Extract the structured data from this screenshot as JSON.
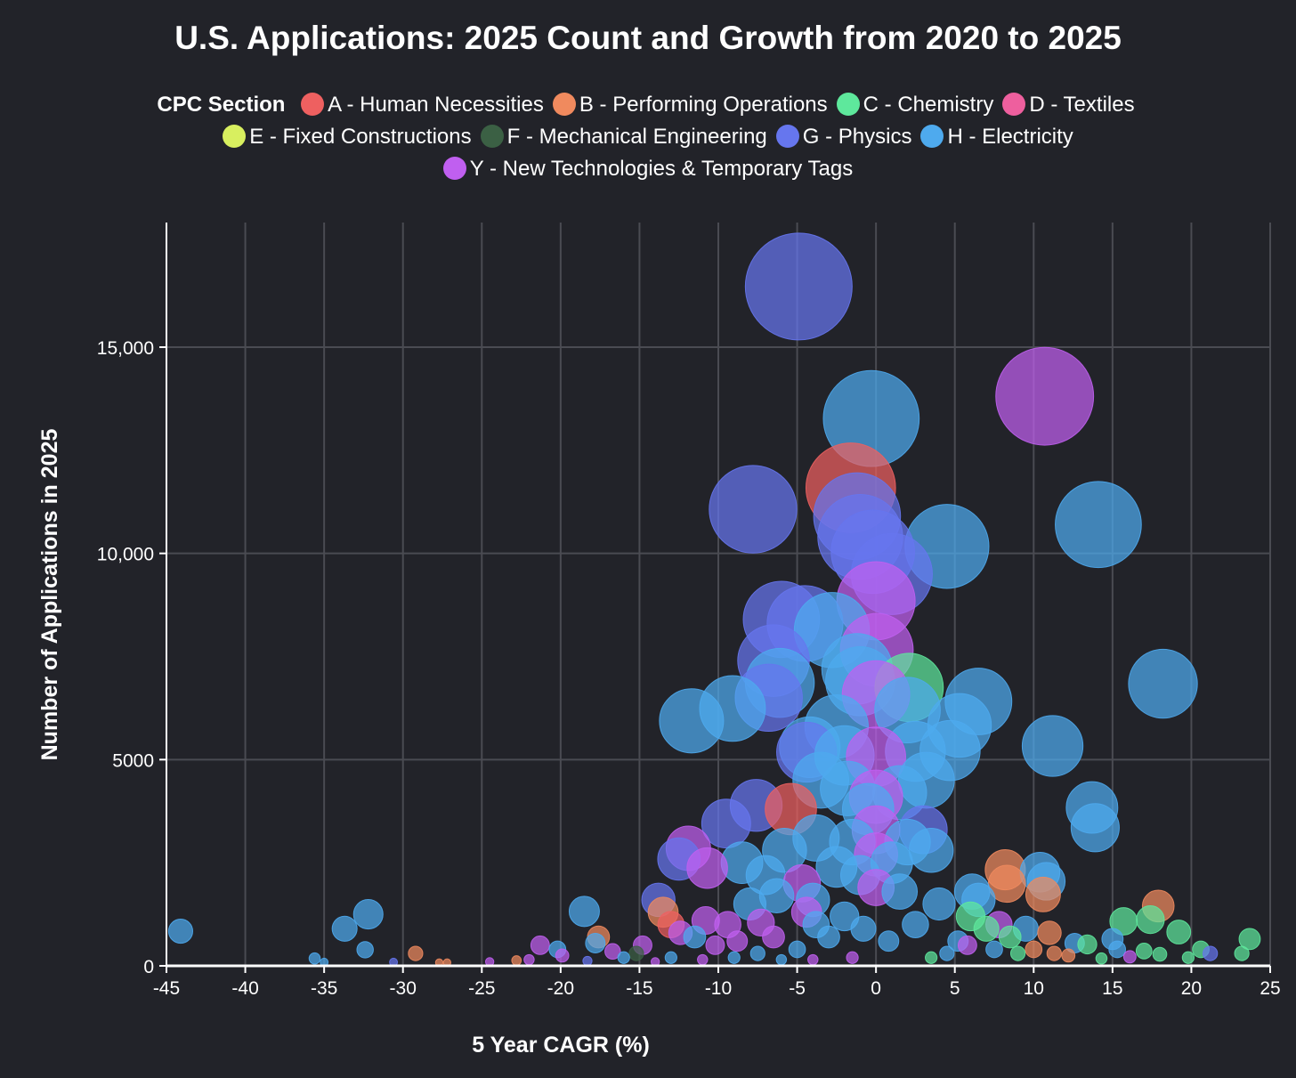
{
  "chart_data": {
    "type": "scatter",
    "title": "U.S. Applications: 2025 Count and Growth from 2020 to 2025",
    "xlabel": "5 Year CAGR (%)",
    "ylabel": "Number of Applications in 2025",
    "xlim": [
      -45,
      25
    ],
    "ylim": [
      0,
      18000
    ],
    "xticks": [
      -45,
      -40,
      -35,
      -30,
      -25,
      -20,
      -15,
      -10,
      -5,
      0,
      5,
      10,
      15,
      20,
      25
    ],
    "yticks": [
      {
        "v": 0,
        "label": "0"
      },
      {
        "v": 5000,
        "label": "5000"
      },
      {
        "v": 10000,
        "label": "10,000"
      },
      {
        "v": 15000,
        "label": "15,000"
      }
    ],
    "grid": true,
    "legend_title": "CPC Section",
    "legend_placement": "top",
    "size_encoding": "bubble area proportional to 2025 count",
    "sections": [
      {
        "key": "A",
        "label": "A - Human Necessities",
        "color": "#ee6060"
      },
      {
        "key": "B",
        "label": "B - Performing Operations",
        "color": "#f08a5e"
      },
      {
        "key": "C",
        "label": "C - Chemistry",
        "color": "#5ee89c"
      },
      {
        "key": "D",
        "label": "D - Textiles",
        "color": "#ee5f9e"
      },
      {
        "key": "E",
        "label": "E - Fixed Constructions",
        "color": "#d8ef5f"
      },
      {
        "key": "F",
        "label": "F - Mechanical Engineering",
        "color": "#3b6044"
      },
      {
        "key": "G",
        "label": "G - Physics",
        "color": "#6676ee"
      },
      {
        "key": "H",
        "label": "H - Electricity",
        "color": "#4eaaee"
      },
      {
        "key": "Y",
        "label": "Y - New Technologies & Temporary Tags",
        "color": "#c05ff0"
      }
    ],
    "points": [
      [
        -4.9,
        16470,
        "G"
      ],
      [
        10.7,
        13810,
        "Y"
      ],
      [
        -0.3,
        13270,
        "H"
      ],
      [
        -1.6,
        11590,
        "A"
      ],
      [
        -7.8,
        11070,
        "G"
      ],
      [
        -1.2,
        10900,
        "G"
      ],
      [
        4.5,
        10170,
        "H"
      ],
      [
        14.1,
        10700,
        "H"
      ],
      [
        -0.2,
        10040,
        "G"
      ],
      [
        0,
        8850,
        "Y"
      ],
      [
        -6.0,
        8400,
        "G"
      ],
      [
        -4.5,
        8300,
        "G"
      ],
      [
        -2.8,
        8140,
        "H"
      ],
      [
        0.05,
        7660,
        "Y"
      ],
      [
        -6.5,
        7400,
        "G"
      ],
      [
        2.1,
        6750,
        "C"
      ],
      [
        18.2,
        6840,
        "H"
      ],
      [
        6.5,
        6410,
        "H"
      ],
      [
        5.3,
        5830,
        "H"
      ],
      [
        -6.1,
        6860,
        "H"
      ],
      [
        -9.1,
        6240,
        "H"
      ],
      [
        -11.7,
        5940,
        "H"
      ],
      [
        -6.8,
        6500,
        "G"
      ],
      [
        0,
        6580,
        "Y"
      ],
      [
        -1.0,
        6900,
        "H"
      ],
      [
        11.2,
        5330,
        "H"
      ],
      [
        4.7,
        5220,
        "H"
      ],
      [
        -4.4,
        5180,
        "G"
      ],
      [
        -4.2,
        5300,
        "H"
      ],
      [
        -2.0,
        5100,
        "H"
      ],
      [
        0,
        5070,
        "Y"
      ],
      [
        3.2,
        4500,
        "H"
      ],
      [
        0,
        4100,
        "Y"
      ],
      [
        13.7,
        3840,
        "H"
      ],
      [
        13.9,
        3350,
        "H"
      ],
      [
        -7.6,
        3890,
        "G"
      ],
      [
        -9.5,
        3450,
        "G"
      ],
      [
        -5.4,
        3800,
        "A"
      ],
      [
        -11.9,
        2850,
        "Y"
      ],
      [
        -12.5,
        2590,
        "G"
      ],
      [
        -10.7,
        2370,
        "Y"
      ],
      [
        8.2,
        2330,
        "B"
      ],
      [
        10.4,
        2270,
        "H"
      ],
      [
        10.6,
        1730,
        "B"
      ],
      [
        8.3,
        1990,
        "B"
      ],
      [
        10.8,
        2050,
        "H"
      ],
      [
        17.9,
        1450,
        "B"
      ],
      [
        -18.5,
        1320,
        "H"
      ],
      [
        -44.1,
        840,
        "H"
      ],
      [
        -32.2,
        1250,
        "H"
      ],
      [
        -33.7,
        900,
        "H"
      ],
      [
        -32.4,
        390,
        "H"
      ],
      [
        -13.8,
        1600,
        "G"
      ],
      [
        0,
        1900,
        "Y"
      ],
      [
        -4.7,
        2000,
        "Y"
      ],
      [
        -4.4,
        1300,
        "Y"
      ],
      [
        15.7,
        1080,
        "C"
      ],
      [
        17.4,
        1120,
        "C"
      ],
      [
        19.2,
        820,
        "C"
      ],
      [
        23.7,
        650,
        "C"
      ],
      [
        20.6,
        400,
        "C"
      ],
      [
        21.2,
        300,
        "G"
      ],
      [
        23.2,
        300,
        "C"
      ],
      [
        17.0,
        360,
        "C"
      ],
      [
        18.0,
        280,
        "C"
      ],
      [
        19.8,
        200,
        "C"
      ],
      [
        15.0,
        650,
        "H"
      ],
      [
        15.3,
        400,
        "H"
      ],
      [
        12.6,
        550,
        "H"
      ],
      [
        13.4,
        520,
        "C"
      ],
      [
        14.3,
        180,
        "C"
      ],
      [
        16.1,
        220,
        "Y"
      ],
      [
        12.2,
        250,
        "B"
      ],
      [
        -29.2,
        300,
        "B"
      ],
      [
        -27.7,
        80,
        "B"
      ],
      [
        -27.2,
        80,
        "B"
      ],
      [
        -35.6,
        180,
        "H"
      ],
      [
        -35.0,
        90,
        "H"
      ],
      [
        -30.6,
        90,
        "G"
      ],
      [
        -24.5,
        100,
        "Y"
      ],
      [
        -22.8,
        130,
        "B"
      ],
      [
        -22.0,
        150,
        "Y"
      ],
      [
        -21.3,
        500,
        "Y"
      ],
      [
        -20.2,
        400,
        "H"
      ],
      [
        -19.9,
        250,
        "Y"
      ],
      [
        -18.3,
        120,
        "G"
      ],
      [
        -17.6,
        700,
        "B"
      ],
      [
        -17.8,
        550,
        "H"
      ],
      [
        -16.7,
        350,
        "Y"
      ],
      [
        -16.0,
        200,
        "H"
      ],
      [
        -15.2,
        300,
        "F"
      ],
      [
        -14.8,
        500,
        "Y"
      ],
      [
        -13.5,
        1300,
        "B"
      ],
      [
        -13.0,
        1000,
        "A"
      ],
      [
        -12.4,
        800,
        "Y"
      ],
      [
        -11.5,
        700,
        "H"
      ],
      [
        -10.8,
        1100,
        "Y"
      ],
      [
        -10.2,
        500,
        "Y"
      ],
      [
        -9.4,
        1000,
        "Y"
      ],
      [
        -8.8,
        600,
        "Y"
      ],
      [
        -8.0,
        1500,
        "H"
      ],
      [
        -7.3,
        1050,
        "Y"
      ],
      [
        -6.5,
        700,
        "Y"
      ],
      [
        -8.5,
        2500,
        "H"
      ],
      [
        -7.0,
        2200,
        "H"
      ],
      [
        -5.8,
        2800,
        "H"
      ],
      [
        -3.8,
        3100,
        "H"
      ],
      [
        -2.5,
        2400,
        "H"
      ],
      [
        -1.5,
        3000,
        "H"
      ],
      [
        -6.3,
        1700,
        "H"
      ],
      [
        -4.0,
        1600,
        "H"
      ],
      [
        -2.0,
        1200,
        "H"
      ],
      [
        -3.0,
        700,
        "H"
      ],
      [
        -5.0,
        400,
        "H"
      ],
      [
        -7.5,
        300,
        "H"
      ],
      [
        -1.0,
        2200,
        "H"
      ],
      [
        1.0,
        2500,
        "H"
      ],
      [
        2.0,
        3000,
        "H"
      ],
      [
        3.0,
        3300,
        "G"
      ],
      [
        3.5,
        2800,
        "H"
      ],
      [
        4.0,
        1500,
        "H"
      ],
      [
        1.5,
        1800,
        "H"
      ],
      [
        2.5,
        1000,
        "H"
      ],
      [
        0.8,
        600,
        "H"
      ],
      [
        -0.8,
        900,
        "H"
      ],
      [
        0,
        2700,
        "Y"
      ],
      [
        0,
        3300,
        "Y"
      ],
      [
        -1.8,
        4300,
        "H"
      ],
      [
        -3.5,
        4500,
        "H"
      ],
      [
        1.5,
        4200,
        "H"
      ],
      [
        -0.5,
        3800,
        "H"
      ],
      [
        2.5,
        5200,
        "H"
      ],
      [
        -2.5,
        5800,
        "H"
      ],
      [
        5.2,
        600,
        "H"
      ],
      [
        6.0,
        1200,
        "C"
      ],
      [
        6.5,
        1600,
        "H"
      ],
      [
        6.1,
        1800,
        "H"
      ],
      [
        7.0,
        900,
        "C"
      ],
      [
        7.8,
        1000,
        "Y"
      ],
      [
        8.5,
        700,
        "C"
      ],
      [
        9.5,
        900,
        "H"
      ],
      [
        10.0,
        400,
        "B"
      ],
      [
        11.0,
        800,
        "B"
      ],
      [
        11.3,
        300,
        "B"
      ],
      [
        9.0,
        300,
        "C"
      ],
      [
        7.5,
        400,
        "H"
      ],
      [
        5.8,
        500,
        "Y"
      ],
      [
        4.5,
        300,
        "H"
      ],
      [
        3.5,
        200,
        "C"
      ],
      [
        -1.5,
        200,
        "Y"
      ],
      [
        -4.0,
        150,
        "Y"
      ],
      [
        -6.0,
        150,
        "H"
      ],
      [
        -9.0,
        200,
        "H"
      ],
      [
        -11.0,
        150,
        "Y"
      ],
      [
        -13.0,
        200,
        "H"
      ],
      [
        -14.0,
        100,
        "Y"
      ],
      [
        -3.8,
        1000,
        "H"
      ],
      [
        2.0,
        6200,
        "H"
      ],
      [
        -1.2,
        7200,
        "H"
      ],
      [
        1.0,
        9500,
        "G"
      ],
      [
        -1.0,
        10400,
        "G"
      ]
    ]
  }
}
